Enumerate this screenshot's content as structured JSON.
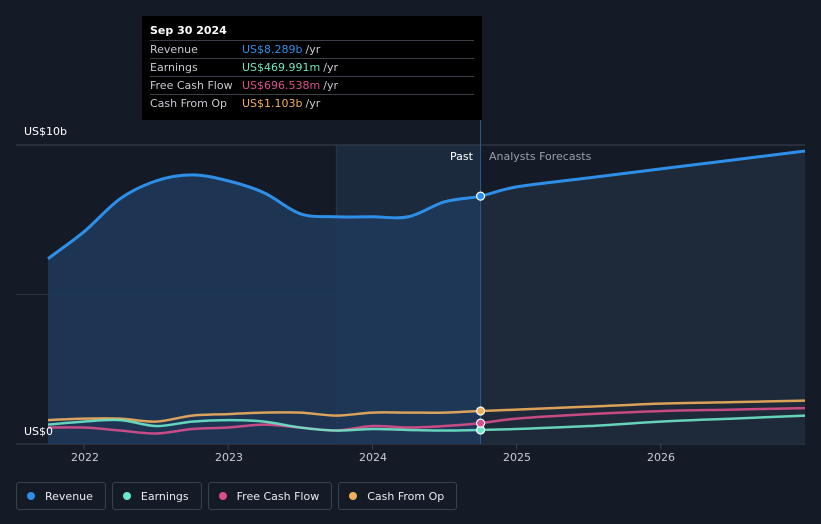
{
  "tooltip": {
    "date": "Sep 30 2024",
    "rows": [
      {
        "label": "Revenue",
        "value": "US$8.289b",
        "unit": "/yr",
        "color": "#2d8fe8"
      },
      {
        "label": "Earnings",
        "value": "US$469.991m",
        "unit": "/yr",
        "color": "#6ee6c8"
      },
      {
        "label": "Free Cash Flow",
        "value": "US$696.538m",
        "unit": "/yr",
        "color": "#d94f8c"
      },
      {
        "label": "Cash From Op",
        "value": "US$1.103b",
        "unit": "/yr",
        "color": "#f0ae5c"
      }
    ]
  },
  "regions": {
    "past": "Past",
    "forecast": "Analysts Forecasts"
  },
  "legend": [
    {
      "label": "Revenue",
      "color": "#2d8fe8"
    },
    {
      "label": "Earnings",
      "color": "#6ee6c8"
    },
    {
      "label": "Free Cash Flow",
      "color": "#d94f8c"
    },
    {
      "label": "Cash From Op",
      "color": "#f0ae5c"
    }
  ],
  "chart_data": {
    "type": "line",
    "y_unit": "US$ billions",
    "ylim": [
      0,
      10
    ],
    "y_tick_labels": [
      {
        "value": 10,
        "label": "US$10b"
      },
      {
        "value": 0,
        "label": "US$0"
      }
    ],
    "x_tick_labels": [
      "2022",
      "2023",
      "2024",
      "2025",
      "2026"
    ],
    "x_ticks": [
      2022.0,
      2023.0,
      2024.0,
      2025.0,
      2026.0
    ],
    "xlim": [
      2021.75,
      2027.0
    ],
    "divider_x": 2024.75,
    "highlight_start_x": 2023.75,
    "grid": true,
    "series": [
      {
        "name": "Revenue",
        "color": "#2d8fe8",
        "x": [
          2021.75,
          2022.0,
          2022.25,
          2022.5,
          2022.75,
          2023.0,
          2023.25,
          2023.5,
          2023.75,
          2024.0,
          2024.25,
          2024.5,
          2024.75,
          2025.0,
          2025.5,
          2026.0,
          2026.5,
          2027.0
        ],
        "values": [
          6.2,
          7.1,
          8.2,
          8.8,
          9.0,
          8.8,
          8.4,
          7.7,
          7.6,
          7.6,
          7.6,
          8.1,
          8.289,
          8.6,
          8.9,
          9.2,
          9.5,
          9.8
        ]
      },
      {
        "name": "Earnings",
        "color": "#6ee6c8",
        "x": [
          2021.75,
          2022.0,
          2022.25,
          2022.5,
          2022.75,
          2023.0,
          2023.25,
          2023.5,
          2023.75,
          2024.0,
          2024.25,
          2024.5,
          2024.75,
          2025.0,
          2025.5,
          2026.0,
          2026.5,
          2027.0
        ],
        "values": [
          0.65,
          0.75,
          0.8,
          0.6,
          0.75,
          0.8,
          0.75,
          0.55,
          0.45,
          0.5,
          0.47,
          0.45,
          0.47,
          0.5,
          0.6,
          0.75,
          0.85,
          0.95
        ]
      },
      {
        "name": "Free Cash Flow",
        "color": "#d94f8c",
        "x": [
          2021.75,
          2022.0,
          2022.25,
          2022.5,
          2022.75,
          2023.0,
          2023.25,
          2023.5,
          2023.75,
          2024.0,
          2024.25,
          2024.5,
          2024.75,
          2025.0,
          2025.5,
          2026.0,
          2026.5,
          2027.0
        ],
        "values": [
          0.55,
          0.55,
          0.45,
          0.35,
          0.5,
          0.55,
          0.65,
          0.55,
          0.45,
          0.6,
          0.55,
          0.6,
          0.697,
          0.85,
          1.0,
          1.1,
          1.15,
          1.2
        ]
      },
      {
        "name": "Cash From Op",
        "color": "#f0ae5c",
        "x": [
          2021.75,
          2022.0,
          2022.25,
          2022.5,
          2022.75,
          2023.0,
          2023.25,
          2023.5,
          2023.75,
          2024.0,
          2024.25,
          2024.5,
          2024.75,
          2025.0,
          2025.5,
          2026.0,
          2026.5,
          2027.0
        ],
        "values": [
          0.8,
          0.85,
          0.85,
          0.75,
          0.95,
          1.0,
          1.05,
          1.05,
          0.95,
          1.05,
          1.05,
          1.05,
          1.103,
          1.15,
          1.25,
          1.35,
          1.4,
          1.45
        ]
      }
    ]
  }
}
